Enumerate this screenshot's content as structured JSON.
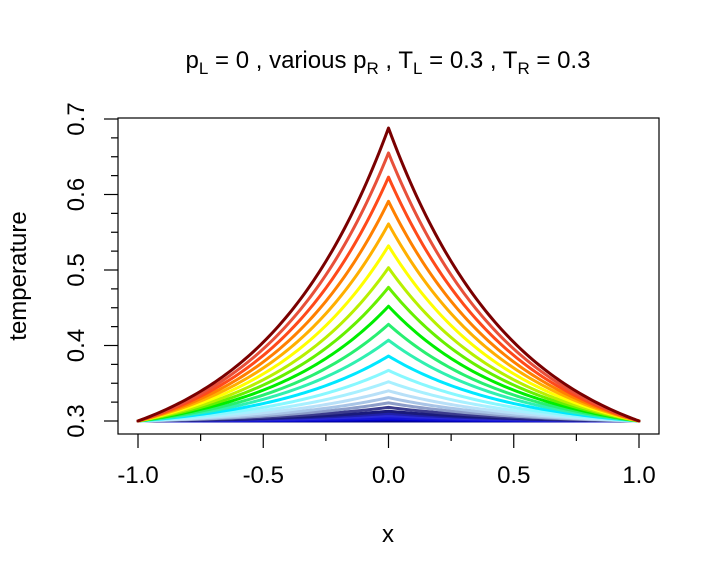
{
  "title": {
    "parts": [
      {
        "base": "p",
        "sub": "L",
        "rest": " = 0 ,  various  "
      },
      {
        "base": "p",
        "sub": "R",
        "rest": " ,  "
      },
      {
        "base": "T",
        "sub": "L",
        "rest": " = 0.3 ,  "
      },
      {
        "base": "T",
        "sub": "R",
        "rest": " = 0.3"
      }
    ]
  },
  "chart_data": {
    "type": "line",
    "title": "pL = 0 ,  various  pR ,  TL = 0.3 ,  TR = 0.3",
    "xlabel": "x",
    "ylabel": "temperature",
    "xlim": [
      -1.0,
      1.0
    ],
    "ylim": [
      0.3,
      0.7
    ],
    "x_ticks": [
      "-1.0",
      "-0.5",
      "0.0",
      "0.5",
      "1.0"
    ],
    "y_ticks": [
      "0.3",
      "0.4",
      "0.5",
      "0.6",
      "0.7"
    ],
    "x_minor_ticks": 0.25,
    "y_minor_ticks": 0.025,
    "grid": false,
    "legend": "none",
    "curve_family": {
      "description_free": true,
      "endpoints": {
        "x": [
          -1.0,
          1.0
        ],
        "y": 0.3
      },
      "peak_x": 0.0,
      "shape_parameter": 2.0
    },
    "series": [
      {
        "peak": 0.3,
        "color": "#00008b"
      },
      {
        "peak": 0.302,
        "color": "#0000cd"
      },
      {
        "peak": 0.304,
        "color": "#1515d6"
      },
      {
        "peak": 0.307,
        "color": "#2a2ad8"
      },
      {
        "peak": 0.31,
        "color": "#2020a8"
      },
      {
        "peak": 0.313,
        "color": "#1a1a7a"
      },
      {
        "peak": 0.318,
        "color": "#3b3b8c"
      },
      {
        "peak": 0.324,
        "color": "#8c9cc8"
      },
      {
        "peak": 0.331,
        "color": "#a8c4e6"
      },
      {
        "peak": 0.34,
        "color": "#b8e0f8"
      },
      {
        "peak": 0.352,
        "color": "#a8f0ff"
      },
      {
        "peak": 0.367,
        "color": "#88f8ff"
      },
      {
        "peak": 0.386,
        "color": "#00e8ff"
      },
      {
        "peak": 0.407,
        "color": "#30f0b0"
      },
      {
        "peak": 0.428,
        "color": "#28ef70"
      },
      {
        "peak": 0.452,
        "color": "#00ee00"
      },
      {
        "peak": 0.477,
        "color": "#66f000"
      },
      {
        "peak": 0.503,
        "color": "#b8f000"
      },
      {
        "peak": 0.532,
        "color": "#ffff00"
      },
      {
        "peak": 0.561,
        "color": "#ffb000"
      },
      {
        "peak": 0.591,
        "color": "#ff8000"
      },
      {
        "peak": 0.623,
        "color": "#ff4a1a"
      },
      {
        "peak": 0.655,
        "color": "#e8503a"
      },
      {
        "peak": 0.688,
        "color": "#7a0000"
      }
    ]
  }
}
